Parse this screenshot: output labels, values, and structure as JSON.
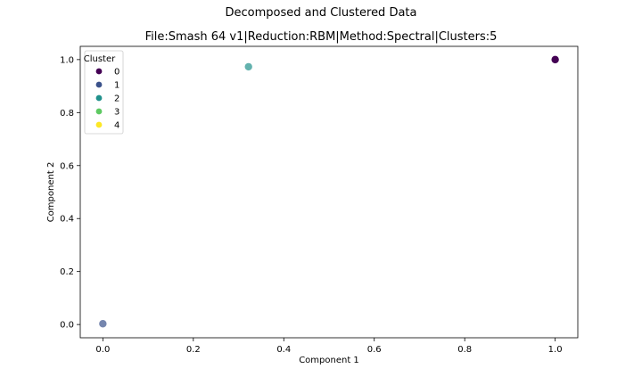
{
  "chart_data": {
    "type": "scatter",
    "suptitle": "Decomposed and Clustered Data",
    "title": "File:Smash 64 v1|Reduction:RBM|Method:Spectral|Clusters:5",
    "xlabel": "Component 1",
    "ylabel": "Component 2",
    "xlim": [
      -0.05,
      1.05
    ],
    "ylim": [
      -0.05,
      1.05
    ],
    "xticks": [
      0.0,
      0.2,
      0.4,
      0.6,
      0.8,
      1.0
    ],
    "yticks": [
      0.0,
      0.2,
      0.4,
      0.6,
      0.8,
      1.0
    ],
    "xtick_labels": [
      "0.0",
      "0.2",
      "0.4",
      "0.6",
      "0.8",
      "1.0"
    ],
    "ytick_labels": [
      "0.0",
      "0.2",
      "0.4",
      "0.6",
      "0.8",
      "1.0"
    ],
    "grid": false,
    "legend": {
      "title": "Cluster",
      "placement": "top-left",
      "entries": [
        {
          "label": "0",
          "color": "#440154"
        },
        {
          "label": "1",
          "color": "#3b528b"
        },
        {
          "label": "2",
          "color": "#21918c"
        },
        {
          "label": "3",
          "color": "#5ec962"
        },
        {
          "label": "4",
          "color": "#fde725"
        }
      ]
    },
    "points": [
      {
        "x": 1.0,
        "y": 1.0,
        "cluster": "0",
        "color": "#440154",
        "opacity": 1.0
      },
      {
        "x": 0.0,
        "y": 0.003,
        "cluster": "1",
        "color": "#3b528b",
        "opacity": 0.7
      },
      {
        "x": 0.322,
        "y": 0.973,
        "cluster": "2",
        "color": "#21918c",
        "opacity": 0.7
      }
    ]
  }
}
